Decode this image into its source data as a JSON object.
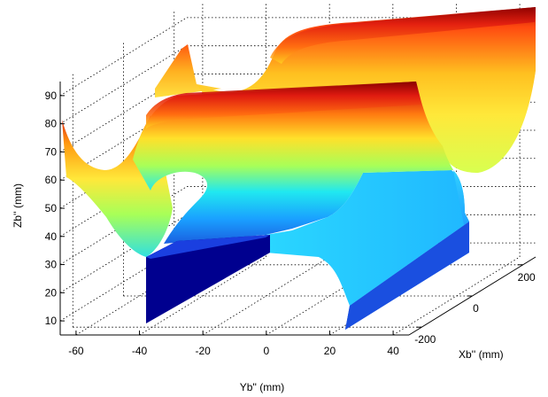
{
  "chart_data": {
    "type": "surface3d",
    "title": "",
    "xlabel": "Yb'' (mm)",
    "ylabel": "Xb'' (mm)",
    "zlabel": "Zb'' (mm)",
    "x_ticks": [
      -60,
      -40,
      -20,
      0,
      20,
      40
    ],
    "y_ticks": [
      -200,
      0,
      200
    ],
    "z_ticks": [
      10,
      20,
      30,
      40,
      50,
      60,
      70,
      80,
      90
    ],
    "xlim": [
      -65,
      45
    ],
    "ylim": [
      -250,
      250
    ],
    "zlim": [
      5,
      95
    ],
    "colormap": "jet",
    "grid": true,
    "colors": {
      "dark_blue": "#00008f",
      "blue": "#1f6fe0",
      "cyan": "#1fe0ff",
      "green": "#a8ff58",
      "yellow": "#ffe82a",
      "orange": "#ff8a10",
      "red": "#e01a10",
      "dark_red": "#8a0000"
    }
  }
}
